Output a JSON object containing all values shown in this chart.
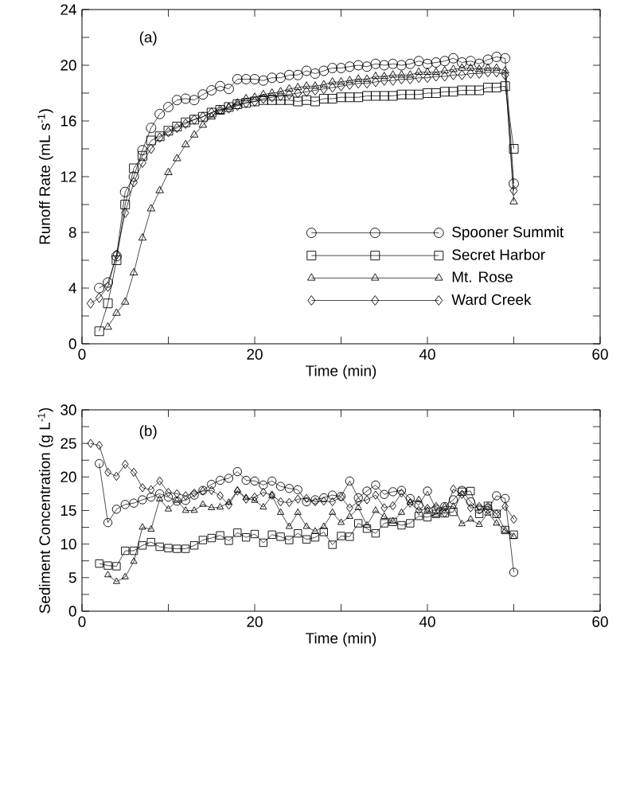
{
  "chart_data": [
    {
      "type": "line",
      "xlabel": "Time (min)",
      "ylabel": "Runoff Rate (mL s$^{-1}$)",
      "annotations": [
        "(a)"
      ],
      "legend": "bottom right",
      "xlim": [
        0,
        60
      ],
      "xticks": [
        0,
        {
          "value": 10,
          "label": null
        },
        20,
        {
          "value": 30,
          "label": null
        },
        40,
        {
          "value": 50,
          "label": null
        },
        60
      ],
      "ylim": [
        0,
        24
      ],
      "yticks": [
        0,
        {
          "value": 2,
          "label": null
        },
        4,
        {
          "value": 6,
          "label": null
        },
        8,
        {
          "value": 10,
          "label": null
        },
        12,
        {
          "value": 14,
          "label": null
        },
        16,
        {
          "value": 18,
          "label": null
        },
        20,
        {
          "value": 22,
          "label": null
        },
        24
      ],
      "series": [
        {
          "name": "Spooner Summit",
          "color": "#000000",
          "marker": "circle",
          "x": [
            2,
            3,
            4,
            5,
            6,
            7,
            8,
            9,
            10,
            11,
            12,
            13,
            14,
            15,
            16,
            17,
            18,
            19,
            20,
            21,
            22,
            23,
            24,
            25,
            26,
            27,
            28,
            29,
            30,
            31,
            32,
            33,
            34,
            35,
            36,
            37,
            38,
            39,
            40,
            41,
            42,
            43,
            44,
            45,
            46,
            47,
            48,
            49,
            50
          ],
          "values": [
            4.0,
            4.4,
            6.3,
            10.9,
            12.0,
            13.9,
            15.5,
            16.5,
            17.0,
            17.5,
            17.6,
            17.5,
            17.9,
            18.2,
            18.5,
            18.3,
            19.0,
            19.0,
            19.0,
            18.9,
            19.1,
            19.1,
            19.3,
            19.3,
            19.6,
            19.4,
            19.6,
            19.8,
            19.8,
            19.9,
            20.0,
            19.9,
            20.1,
            20.0,
            20.1,
            20.0,
            20.1,
            20.3,
            20.1,
            20.2,
            20.3,
            20.5,
            20.2,
            20.3,
            20.1,
            20.4,
            20.6,
            20.5,
            11.5
          ]
        },
        {
          "name": "Secret Harbor",
          "color": "#000000",
          "marker": "square",
          "x": [
            2,
            3,
            4,
            5,
            6,
            7,
            8,
            9,
            10,
            11,
            12,
            13,
            14,
            15,
            16,
            17,
            18,
            19,
            20,
            21,
            22,
            23,
            24,
            25,
            26,
            27,
            28,
            29,
            30,
            31,
            32,
            33,
            34,
            35,
            36,
            37,
            38,
            39,
            40,
            41,
            42,
            43,
            44,
            45,
            46,
            47,
            48,
            49,
            50
          ],
          "values": [
            0.9,
            2.9,
            6.0,
            10.0,
            12.6,
            13.5,
            14.6,
            14.9,
            15.3,
            15.6,
            15.9,
            16.1,
            16.3,
            16.6,
            16.8,
            17.0,
            17.2,
            17.3,
            17.4,
            17.5,
            17.5,
            17.5,
            17.5,
            17.4,
            17.5,
            17.4,
            17.6,
            17.6,
            17.7,
            17.7,
            17.7,
            17.8,
            17.8,
            17.8,
            17.8,
            17.9,
            17.9,
            17.9,
            18.0,
            18.0,
            18.1,
            18.1,
            18.2,
            18.2,
            18.2,
            18.4,
            18.4,
            18.5,
            14.0
          ]
        },
        {
          "name": "Mt. Rose",
          "color": "#000000",
          "marker": "triangle",
          "x": [
            3,
            4,
            5,
            6,
            7,
            8,
            9,
            10,
            11,
            12,
            13,
            14,
            15,
            16,
            17,
            18,
            19,
            20,
            21,
            22,
            23,
            24,
            25,
            26,
            27,
            28,
            29,
            30,
            31,
            32,
            33,
            34,
            35,
            36,
            37,
            38,
            39,
            40,
            41,
            42,
            43,
            44,
            45,
            46,
            47,
            48,
            49,
            50
          ],
          "values": [
            1.2,
            2.2,
            3.0,
            5.1,
            7.6,
            9.7,
            11.0,
            12.3,
            13.3,
            14.3,
            15.0,
            15.7,
            16.3,
            16.7,
            17.0,
            17.3,
            17.6,
            17.7,
            17.9,
            18.0,
            18.1,
            18.3,
            18.4,
            18.5,
            18.5,
            18.6,
            18.8,
            18.8,
            18.9,
            19.0,
            19.0,
            19.2,
            19.2,
            19.3,
            19.3,
            19.3,
            19.5,
            19.5,
            19.5,
            19.6,
            19.7,
            19.8,
            19.8,
            19.7,
            19.8,
            19.8,
            19.6,
            10.2
          ]
        },
        {
          "name": "Ward Creek",
          "color": "#000000",
          "marker": "diamond",
          "x": [
            1,
            2,
            3,
            4,
            5,
            6,
            7,
            8,
            9,
            10,
            11,
            12,
            13,
            14,
            15,
            16,
            17,
            18,
            19,
            20,
            21,
            22,
            23,
            24,
            25,
            26,
            27,
            28,
            29,
            30,
            31,
            32,
            33,
            34,
            35,
            36,
            37,
            38,
            39,
            40,
            41,
            42,
            43,
            44,
            45,
            46,
            47,
            48,
            49,
            50
          ],
          "values": [
            2.9,
            3.3,
            4.1,
            6.4,
            9.4,
            11.6,
            13.0,
            14.0,
            14.8,
            15.2,
            15.5,
            15.8,
            16.1,
            16.3,
            16.6,
            16.8,
            16.9,
            17.1,
            17.3,
            17.4,
            17.6,
            17.7,
            17.8,
            17.9,
            18.0,
            18.1,
            18.2,
            18.3,
            18.4,
            18.5,
            18.6,
            18.7,
            18.7,
            18.8,
            18.9,
            18.9,
            19.0,
            19.0,
            19.1,
            19.1,
            19.2,
            19.2,
            19.3,
            19.3,
            19.4,
            19.4,
            19.5,
            19.5,
            19.3,
            11.0
          ]
        }
      ]
    },
    {
      "type": "line",
      "xlabel": "Time (min)",
      "ylabel": "Sediment Concentration (g L$^{-1}$)",
      "annotations": [
        "(b)"
      ],
      "xlim": [
        0,
        60
      ],
      "xticks": [
        0,
        {
          "value": 10,
          "label": null
        },
        20,
        {
          "value": 30,
          "label": null
        },
        40,
        {
          "value": 50,
          "label": null
        },
        60
      ],
      "ylim": [
        0,
        30
      ],
      "yticks": [
        0,
        {
          "value": 2.5,
          "label": null
        },
        5,
        {
          "value": 7.5,
          "label": null
        },
        10,
        {
          "value": 12.5,
          "label": null
        },
        15,
        {
          "value": 17.5,
          "label": null
        },
        20,
        {
          "value": 22.5,
          "label": null
        },
        25,
        {
          "value": 27.5,
          "label": null
        },
        30
      ],
      "series": [
        {
          "color": "#000000",
          "marker": "circle",
          "x": [
            2,
            3,
            4,
            5,
            6,
            7,
            8,
            9,
            10,
            11,
            12,
            13,
            14,
            15,
            16,
            17,
            18,
            19,
            20,
            21,
            22,
            23,
            24,
            25,
            26,
            27,
            28,
            29,
            30,
            31,
            32,
            33,
            34,
            35,
            36,
            37,
            38,
            39,
            40,
            41,
            42,
            43,
            44,
            45,
            46,
            47,
            48,
            49,
            50
          ],
          "values": [
            22.0,
            13.2,
            15.2,
            15.9,
            16.1,
            16.6,
            17.0,
            17.5,
            17.0,
            16.4,
            16.5,
            17.3,
            18.0,
            18.9,
            19.5,
            19.8,
            20.8,
            19.5,
            19.4,
            18.8,
            19.4,
            18.6,
            18.3,
            18.1,
            16.3,
            16.6,
            16.9,
            17.3,
            17.1,
            19.4,
            16.9,
            17.9,
            18.8,
            17.4,
            17.8,
            18.0,
            16.8,
            15.8,
            17.9,
            15.2,
            15.6,
            16.6,
            18.0,
            16.3,
            15.2,
            15.3,
            17.2,
            16.8,
            5.8
          ]
        },
        {
          "color": "#000000",
          "marker": "square",
          "x": [
            2,
            3,
            4,
            5,
            6,
            7,
            8,
            9,
            10,
            11,
            12,
            13,
            14,
            15,
            16,
            17,
            18,
            19,
            20,
            21,
            22,
            23,
            24,
            25,
            26,
            27,
            28,
            29,
            30,
            31,
            32,
            33,
            34,
            35,
            36,
            37,
            38,
            39,
            40,
            41,
            42,
            43,
            44,
            45,
            46,
            47,
            48,
            49,
            50
          ],
          "values": [
            7.1,
            6.8,
            6.7,
            9.0,
            9.0,
            9.8,
            10.3,
            9.6,
            9.4,
            9.3,
            9.3,
            9.8,
            10.6,
            10.9,
            11.3,
            10.5,
            11.7,
            11.0,
            11.5,
            10.2,
            11.4,
            11.1,
            10.6,
            11.6,
            10.7,
            11.0,
            11.8,
            9.9,
            11.2,
            11.1,
            13.1,
            12.3,
            11.6,
            13.1,
            13.3,
            12.8,
            13.1,
            14.2,
            14.0,
            14.5,
            14.6,
            14.8,
            17.8,
            17.9,
            14.5,
            15.7,
            14.5,
            12.1,
            11.4
          ]
        },
        {
          "color": "#000000",
          "marker": "triangle",
          "x": [
            3,
            4,
            5,
            6,
            7,
            8,
            9,
            10,
            11,
            12,
            13,
            14,
            15,
            16,
            17,
            18,
            19,
            20,
            21,
            22,
            23,
            24,
            25,
            26,
            27,
            28,
            29,
            30,
            31,
            32,
            33,
            34,
            35,
            36,
            37,
            38,
            39,
            40,
            41,
            42,
            43,
            44,
            45,
            46,
            47,
            48,
            49,
            50
          ],
          "values": [
            5.4,
            4.4,
            5.1,
            7.4,
            12.5,
            12.2,
            16.7,
            15.2,
            16.5,
            15.0,
            15.0,
            15.9,
            15.4,
            15.5,
            16.2,
            18.0,
            16.9,
            16.5,
            15.5,
            17.2,
            14.7,
            12.6,
            14.7,
            12.6,
            11.9,
            12.6,
            14.7,
            13.2,
            14.1,
            15.4,
            12.8,
            15.0,
            14.1,
            13.4,
            14.7,
            16.2,
            16.6,
            15.0,
            14.4,
            15.6,
            15.6,
            13.0,
            13.7,
            12.9,
            14.6,
            13.1,
            12.0,
            11.1
          ]
        },
        {
          "color": "#000000",
          "marker": "diamond",
          "x": [
            1,
            2,
            3,
            4,
            5,
            6,
            7,
            8,
            9,
            10,
            11,
            12,
            13,
            14,
            15,
            16,
            17,
            18,
            19,
            20,
            21,
            22,
            23,
            24,
            25,
            26,
            27,
            28,
            29,
            30,
            31,
            32,
            33,
            34,
            35,
            36,
            37,
            38,
            39,
            40,
            41,
            42,
            43,
            44,
            45,
            46,
            47,
            48,
            49,
            50
          ],
          "values": [
            25.0,
            24.7,
            20.7,
            20.1,
            21.9,
            20.7,
            18.4,
            18.1,
            19.4,
            17.7,
            17.5,
            17.2,
            17.6,
            17.9,
            18.0,
            17.2,
            15.8,
            17.9,
            16.7,
            17.0,
            17.7,
            17.3,
            16.3,
            16.2,
            16.7,
            16.8,
            16.3,
            16.4,
            16.3,
            17.0,
            15.4,
            16.3,
            16.6,
            17.3,
            15.4,
            15.7,
            17.6,
            16.1,
            15.0,
            15.3,
            15.6,
            14.6,
            18.2,
            17.4,
            15.4,
            15.6,
            15.6,
            14.5,
            15.6,
            13.7
          ]
        }
      ]
    }
  ]
}
